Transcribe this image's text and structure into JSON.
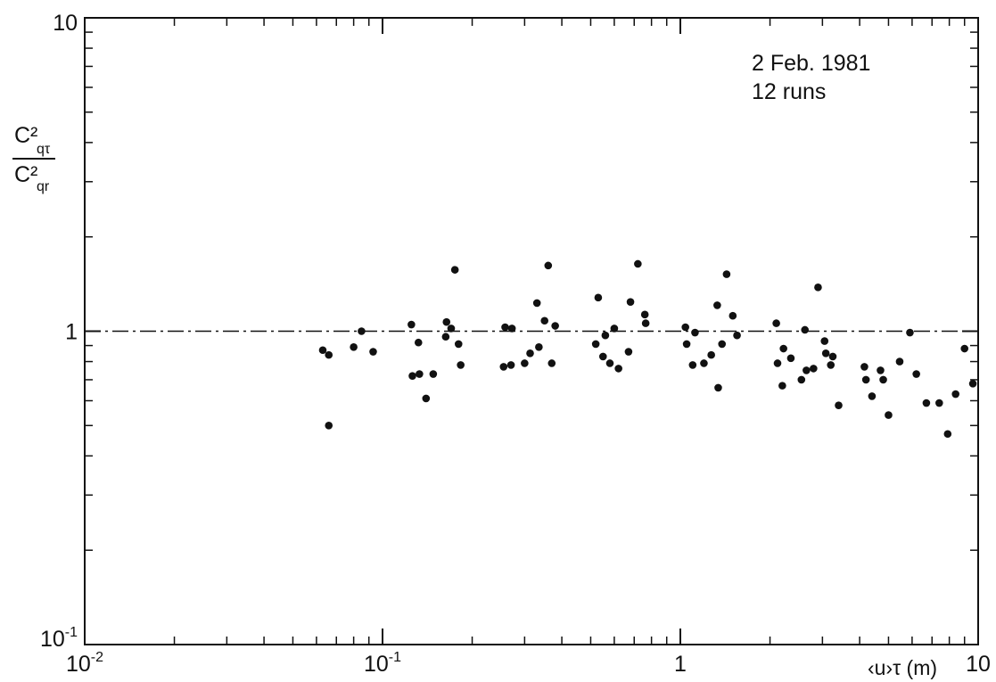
{
  "chart_data": {
    "type": "scatter",
    "x_scale": "log",
    "y_scale": "log",
    "xlim": [
      0.01,
      10
    ],
    "ylim": [
      0.1,
      10
    ],
    "xlabel": "‹u›τ (m)",
    "ylabel_numerator": "C²",
    "ylabel_numerator_sub": "qτ",
    "ylabel_denominator": "C²",
    "ylabel_denominator_sub": "qr",
    "x_ticks": [
      {
        "value": 0.01,
        "base": "10",
        "exp": "-2"
      },
      {
        "value": 0.1,
        "base": "10",
        "exp": "-1"
      },
      {
        "value": 1,
        "base": "1",
        "exp": ""
      },
      {
        "value": 10,
        "base": "10",
        "exp": ""
      }
    ],
    "y_ticks": [
      {
        "value": 0.1,
        "base": "10",
        "exp": "-1"
      },
      {
        "value": 1,
        "base": "1",
        "exp": ""
      },
      {
        "value": 10,
        "base": "10",
        "exp": ""
      }
    ],
    "reference_line": {
      "y": 1,
      "style": "dash-dot"
    },
    "annotation": {
      "line1": "2 Feb. 1981",
      "line2": "12 runs"
    },
    "grid": false,
    "points": [
      [
        0.063,
        0.87
      ],
      [
        0.066,
        0.84
      ],
      [
        0.066,
        0.5
      ],
      [
        0.08,
        0.89
      ],
      [
        0.085,
        1.0
      ],
      [
        0.093,
        0.86
      ],
      [
        0.125,
        1.05
      ],
      [
        0.126,
        0.72
      ],
      [
        0.132,
        0.92
      ],
      [
        0.133,
        0.73
      ],
      [
        0.14,
        0.61
      ],
      [
        0.148,
        0.73
      ],
      [
        0.163,
        0.96
      ],
      [
        0.164,
        1.07
      ],
      [
        0.17,
        1.02
      ],
      [
        0.175,
        1.57
      ],
      [
        0.18,
        0.91
      ],
      [
        0.183,
        0.78
      ],
      [
        0.255,
        0.77
      ],
      [
        0.258,
        1.03
      ],
      [
        0.27,
        0.78
      ],
      [
        0.272,
        1.02
      ],
      [
        0.3,
        0.79
      ],
      [
        0.313,
        0.85
      ],
      [
        0.33,
        1.23
      ],
      [
        0.335,
        0.89
      ],
      [
        0.35,
        1.08
      ],
      [
        0.36,
        1.62
      ],
      [
        0.37,
        0.79
      ],
      [
        0.38,
        1.04
      ],
      [
        0.52,
        0.91
      ],
      [
        0.53,
        1.28
      ],
      [
        0.55,
        0.83
      ],
      [
        0.56,
        0.97
      ],
      [
        0.58,
        0.79
      ],
      [
        0.6,
        1.02
      ],
      [
        0.62,
        0.76
      ],
      [
        0.67,
        0.86
      ],
      [
        0.68,
        1.24
      ],
      [
        0.72,
        1.64
      ],
      [
        0.76,
        1.13
      ],
      [
        0.765,
        1.06
      ],
      [
        1.04,
        1.03
      ],
      [
        1.05,
        0.91
      ],
      [
        1.1,
        0.78
      ],
      [
        1.12,
        0.99
      ],
      [
        1.2,
        0.79
      ],
      [
        1.27,
        0.84
      ],
      [
        1.33,
        1.21
      ],
      [
        1.34,
        0.66
      ],
      [
        1.38,
        0.91
      ],
      [
        1.43,
        1.52
      ],
      [
        1.5,
        1.12
      ],
      [
        1.55,
        0.97
      ],
      [
        2.1,
        1.06
      ],
      [
        2.12,
        0.79
      ],
      [
        2.2,
        0.67
      ],
      [
        2.22,
        0.88
      ],
      [
        2.35,
        0.82
      ],
      [
        2.55,
        0.7
      ],
      [
        2.62,
        1.01
      ],
      [
        2.65,
        0.75
      ],
      [
        2.8,
        0.76
      ],
      [
        2.9,
        1.38
      ],
      [
        3.05,
        0.93
      ],
      [
        3.08,
        0.85
      ],
      [
        3.2,
        0.78
      ],
      [
        3.25,
        0.83
      ],
      [
        3.4,
        0.58
      ],
      [
        4.15,
        0.77
      ],
      [
        4.2,
        0.7
      ],
      [
        4.4,
        0.62
      ],
      [
        4.7,
        0.75
      ],
      [
        4.8,
        0.7
      ],
      [
        5.0,
        0.54
      ],
      [
        5.45,
        0.8
      ],
      [
        5.9,
        0.99
      ],
      [
        6.2,
        0.73
      ],
      [
        6.7,
        0.59
      ],
      [
        7.4,
        0.59
      ],
      [
        7.9,
        0.47
      ],
      [
        8.4,
        0.63
      ],
      [
        9.0,
        0.88
      ],
      [
        9.6,
        0.68
      ]
    ]
  }
}
